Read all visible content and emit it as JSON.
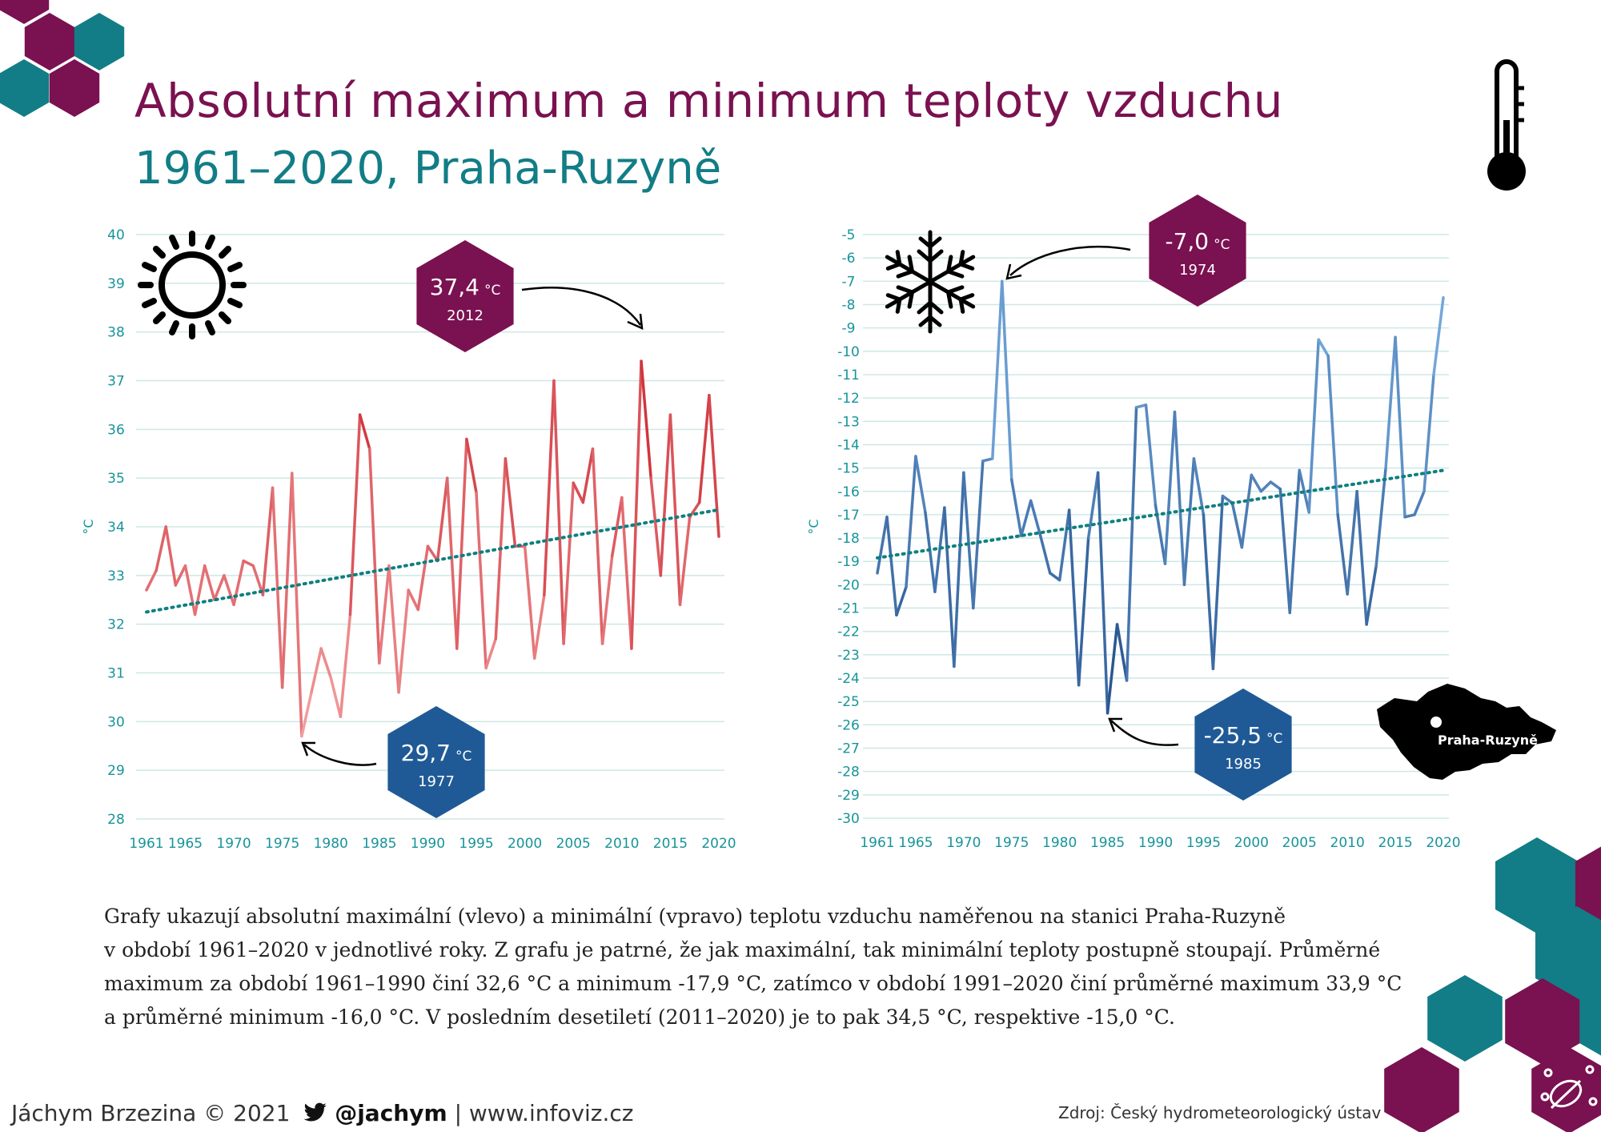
{
  "header": {
    "title": "Absolutní maximum a minimum teploty vzduchu",
    "subtitle": "1961–2020, Praha-Ruzyně"
  },
  "colors": {
    "title": "#7a1150",
    "subtitle": "#127d86",
    "axis_text": "#17949a",
    "gridline": "#cde8e6",
    "trend": "#0f7f7f",
    "max_series": "#d63a3a",
    "min_series": "#2f66a8",
    "hex_purple": "#7a1150",
    "hex_blue": "#1f5a96",
    "hex_teal": "#127d86"
  },
  "icons": [
    "sun-icon",
    "snowflake-icon",
    "thermometer-icon",
    "czech-map-icon",
    "twitter-bird-icon",
    "leaf-network-icon"
  ],
  "chart_data": [
    {
      "type": "line",
      "id": "max",
      "title": "",
      "xlabel": "",
      "ylabel": "°C",
      "ylim": [
        28,
        40
      ],
      "yticks": [
        "28",
        "29",
        "30",
        "31",
        "32",
        "33",
        "34",
        "35",
        "36",
        "37",
        "38",
        "39",
        "40"
      ],
      "xticks": [
        "1961",
        "1965",
        "1970",
        "1975",
        "1980",
        "1985",
        "1990",
        "1995",
        "2000",
        "2005",
        "2010",
        "2015",
        "2020"
      ],
      "grid": true,
      "x_start": 1961,
      "series": [
        {
          "values": [
            32.7,
            33.1,
            34.0,
            32.8,
            33.2,
            32.2,
            33.2,
            32.5,
            33.0,
            32.4,
            33.3,
            33.2,
            32.6,
            34.8,
            30.7,
            35.1,
            29.7,
            30.6,
            31.5,
            30.9,
            30.1,
            32.2,
            36.3,
            35.6,
            31.2,
            33.2,
            30.6,
            32.7,
            32.3,
            33.6,
            33.3,
            35.0,
            31.5,
            35.8,
            34.7,
            31.1,
            31.7,
            35.4,
            33.6,
            33.6,
            31.3,
            32.6,
            37.0,
            31.6,
            34.9,
            34.5,
            35.6,
            31.6,
            33.4,
            34.6,
            31.5,
            37.4,
            35.0,
            33.0,
            36.3,
            32.4,
            34.2,
            34.5,
            36.7,
            33.8
          ]
        }
      ],
      "trend": {
        "start": 32.25,
        "end": 34.35
      },
      "annotations": [
        {
          "value": "37,4",
          "unit": "°C",
          "year": "2012",
          "kind": "max"
        },
        {
          "value": "29,7",
          "unit": "°C",
          "year": "1977",
          "kind": "min"
        }
      ]
    },
    {
      "type": "line",
      "id": "min",
      "title": "",
      "xlabel": "",
      "ylabel": "°C",
      "ylim": [
        -30,
        -5
      ],
      "yticks": [
        "-30",
        "-29",
        "-28",
        "-27",
        "-26",
        "-25",
        "-24",
        "-23",
        "-22",
        "-21",
        "-20",
        "-19",
        "-18",
        "-17",
        "-16",
        "-15",
        "-14",
        "-13",
        "-12",
        "-11",
        "-10",
        "-9",
        "-8",
        "-7",
        "-6",
        "-5"
      ],
      "xticks": [
        "1961",
        "1965",
        "1970",
        "1975",
        "1980",
        "1985",
        "1990",
        "1995",
        "2000",
        "2005",
        "2010",
        "2015",
        "2020"
      ],
      "grid": true,
      "x_start": 1961,
      "series": [
        {
          "values": [
            -19.5,
            -17.1,
            -21.3,
            -20.1,
            -14.5,
            -16.9,
            -20.3,
            -16.7,
            -23.5,
            -15.2,
            -21.0,
            -14.7,
            -14.6,
            -7.0,
            -15.5,
            -17.9,
            -16.4,
            -17.9,
            -19.5,
            -19.8,
            -16.8,
            -24.3,
            -18.0,
            -15.2,
            -25.5,
            -21.7,
            -24.1,
            -12.4,
            -12.3,
            -16.6,
            -19.1,
            -12.6,
            -20.0,
            -14.6,
            -17.0,
            -23.6,
            -16.2,
            -16.5,
            -18.4,
            -15.3,
            -16.0,
            -15.6,
            -15.9,
            -21.2,
            -15.1,
            -16.9,
            -9.5,
            -10.2,
            -17.0,
            -20.4,
            -16.0,
            -21.7,
            -19.2,
            -15.0,
            -9.4,
            -17.1,
            -17.0,
            -16.0,
            -11.0,
            -7.7
          ]
        }
      ],
      "trend": {
        "start": -18.85,
        "end": -15.1
      },
      "annotations": [
        {
          "value": "-7,0",
          "unit": "°C",
          "year": "1974",
          "kind": "max"
        },
        {
          "value": "-25,5",
          "unit": "°C",
          "year": "1985",
          "kind": "min"
        }
      ]
    }
  ],
  "map": {
    "label": "Praha-Ruzyně"
  },
  "description": {
    "lines": [
      "Grafy ukazují absolutní maximální (vlevo) a minimální (vpravo) teplotu vzduchu naměřenou na stanici Praha-Ruzyně",
      "v období 1961–2020 v jednotlivé roky. Z grafu je patrné, že jak maximální, tak minimální teploty postupně stoupají. Průměrné",
      "maximum za období 1961–1990 činí 32,6 °C a minimum -17,9 °C, zatímco v období 1991–2020 činí průměrné maximum 33,9 °C",
      "a průměrné minimum -16,0 °C. V posledním desetiletí (2011–2020) je to pak 34,5 °C, respektive -15,0 °C."
    ]
  },
  "footer": {
    "author": "Jáchym Brzezina © 2021",
    "handle": "@jachym",
    "separator": "|",
    "website": "www.infoviz.cz",
    "source": "Zdroj: Český hydrometeorologický ústav"
  }
}
